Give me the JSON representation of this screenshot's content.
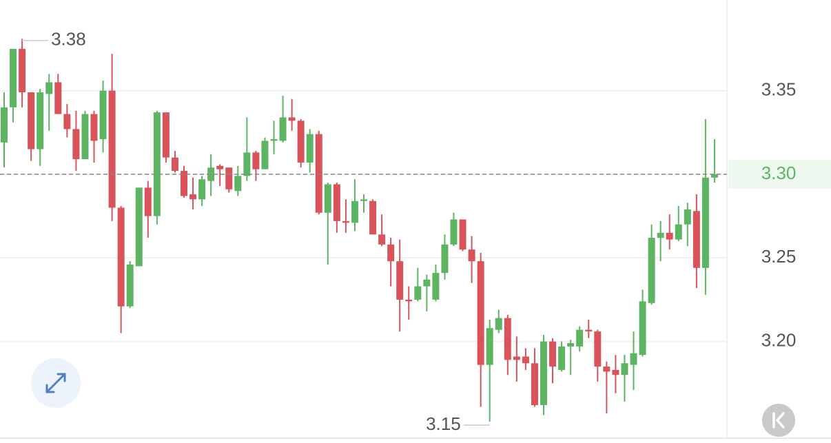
{
  "chart_data": {
    "type": "candlestick",
    "ylim": [
      3.1426,
      3.4042
    ],
    "yticks": [
      3.35,
      {
        "value": 3.3,
        "label": "3.30"
      },
      3.25,
      {
        "value": 3.2,
        "label": "3.20"
      }
    ],
    "grid": true,
    "up_color": "#5db462",
    "down_color": "#d8535a",
    "max_label": 3.38,
    "min_label": 3.15,
    "last_price": {
      "value": 3.3,
      "label": "3.30"
    },
    "open": [
      3.319,
      3.34,
      3.375,
      3.349,
      3.315,
      3.348,
      3.355,
      3.336,
      3.327,
      3.309,
      3.336,
      3.321,
      3.35,
      3.28,
      3.221,
      3.245,
      3.292,
      3.275,
      3.337,
      3.31,
      3.302,
      3.288,
      3.285,
      3.296,
      3.305,
      3.304,
      3.29,
      3.299,
      3.313,
      3.303,
      3.32,
      3.32,
      3.334,
      3.332,
      3.307,
      3.324,
      3.277,
      3.294,
      3.272,
      3.271,
      3.284,
      3.284,
      3.264,
      3.258,
      3.248,
      3.225,
      3.225,
      3.233,
      3.225,
      3.241,
      3.258,
      3.273,
      3.255,
      3.248,
      3.186,
      3.207,
      3.214,
      3.191,
      3.191,
      3.187,
      3.162,
      3.2,
      3.183,
      3.197,
      3.197,
      3.207,
      3.206,
      3.185,
      3.183,
      3.18,
      3.186,
      3.192,
      3.223,
      3.262,
      3.265,
      3.261,
      3.27,
      3.278,
      3.244,
      3.298
    ],
    "high": [
      3.349,
      3.375,
      3.381,
      3.349,
      3.351,
      3.36,
      3.36,
      3.342,
      3.338,
      3.338,
      3.338,
      3.356,
      3.372,
      3.281,
      3.248,
      3.292,
      3.296,
      3.338,
      3.337,
      3.314,
      3.305,
      3.298,
      3.299,
      3.312,
      3.306,
      3.304,
      3.305,
      3.334,
      3.314,
      3.322,
      3.332,
      3.347,
      3.345,
      3.333,
      3.327,
      3.326,
      3.295,
      3.295,
      3.285,
      3.297,
      3.288,
      3.285,
      3.276,
      3.262,
      3.261,
      3.233,
      3.244,
      3.24,
      3.246,
      3.264,
      3.277,
      3.273,
      3.263,
      3.253,
      3.213,
      3.219,
      3.216,
      3.203,
      3.196,
      3.196,
      3.204,
      3.202,
      3.2,
      3.201,
      3.209,
      3.213,
      3.207,
      3.188,
      3.192,
      3.192,
      3.206,
      3.231,
      3.27,
      3.272,
      3.276,
      3.281,
      3.283,
      3.288,
      3.333,
      3.321
    ],
    "low": [
      3.304,
      3.331,
      3.34,
      3.308,
      3.305,
      3.326,
      3.336,
      3.322,
      3.302,
      3.309,
      3.307,
      3.313,
      3.272,
      3.205,
      3.22,
      3.245,
      3.262,
      3.27,
      3.307,
      3.301,
      3.286,
      3.279,
      3.281,
      3.287,
      3.293,
      3.289,
      3.287,
      3.296,
      3.296,
      3.303,
      3.312,
      3.319,
      3.326,
      3.304,
      3.301,
      3.276,
      3.246,
      3.265,
      3.265,
      3.266,
      3.277,
      3.264,
      3.257,
      3.233,
      3.206,
      3.213,
      3.224,
      3.218,
      3.224,
      3.237,
      3.257,
      3.254,
      3.235,
      3.161,
      3.152,
      3.205,
      3.18,
      3.176,
      3.183,
      3.161,
      3.156,
      3.175,
      3.182,
      3.18,
      3.194,
      3.202,
      3.176,
      3.157,
      3.169,
      3.164,
      3.171,
      3.191,
      3.222,
      3.248,
      3.255,
      3.26,
      3.257,
      3.232,
      3.228,
      3.295
    ],
    "close": [
      3.34,
      3.375,
      3.349,
      3.315,
      3.349,
      3.355,
      3.336,
      3.327,
      3.309,
      3.336,
      3.32,
      3.35,
      3.28,
      3.221,
      3.246,
      3.292,
      3.275,
      3.337,
      3.31,
      3.302,
      3.287,
      3.285,
      3.297,
      3.304,
      3.303,
      3.291,
      3.299,
      3.313,
      3.303,
      3.32,
      3.321,
      3.334,
      3.332,
      3.307,
      3.324,
      3.277,
      3.294,
      3.272,
      3.271,
      3.284,
      3.285,
      3.264,
      3.258,
      3.248,
      3.225,
      3.224,
      3.233,
      3.237,
      3.241,
      3.258,
      3.273,
      3.255,
      3.248,
      3.186,
      3.208,
      3.214,
      3.189,
      3.189,
      3.187,
      3.162,
      3.2,
      3.185,
      3.197,
      3.199,
      3.207,
      3.206,
      3.185,
      3.182,
      3.18,
      3.187,
      3.193,
      3.224,
      3.262,
      3.265,
      3.261,
      3.27,
      3.279,
      3.244,
      3.298,
      3.3
    ]
  }
}
